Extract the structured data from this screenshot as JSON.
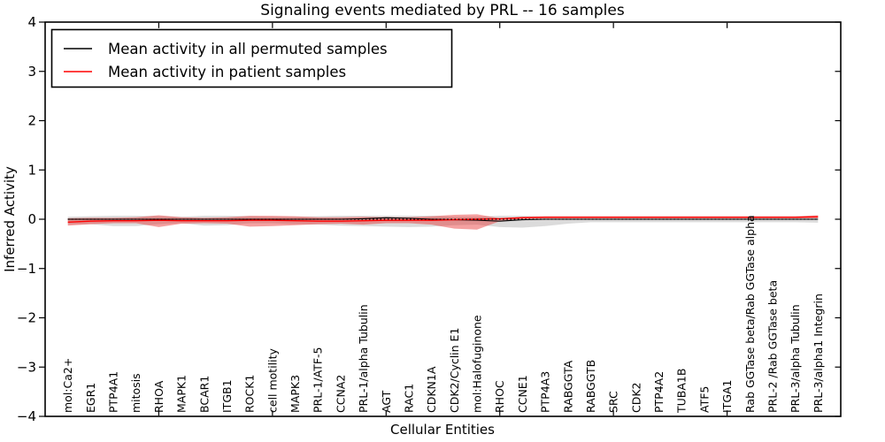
{
  "figure": {
    "title": "Signaling events mediated by PRL -- 16 samples",
    "xlabel": "Cellular Entities",
    "ylabel": "Inferred Activity",
    "legend": {
      "entries": [
        {
          "label": "Mean activity in all permuted samples",
          "color": "#000000"
        },
        {
          "label": "Mean activity in patient samples",
          "color": "#ff0000"
        }
      ],
      "position": "upper left"
    }
  },
  "chart_data": {
    "type": "line",
    "title": "Signaling events mediated by PRL -- 16 samples",
    "xlabel": "Cellular Entities",
    "ylabel": "Inferred Activity",
    "ylim": [
      -4,
      4
    ],
    "ytick_labels": [
      "4",
      "3",
      "2",
      "1",
      "0",
      "−1",
      "−2",
      "−3",
      "−4"
    ],
    "grid": false,
    "legend_position": "upper left",
    "categories": [
      "mol:Ca2+",
      "EGR1",
      "PTP4A1",
      "mitosis",
      "RHOA",
      "MAPK1",
      "BCAR1",
      "ITGB1",
      "ROCK1",
      "cell motility",
      "MAPK3",
      "PRL-1/ATF-5",
      "CCNA2",
      "PRL-1/alpha Tubulin",
      "AGT",
      "RAC1",
      "CDKN1A",
      "CDK2/Cyclin E1",
      "mol:Halofuginone",
      "RHOC",
      "CCNE1",
      "PTP4A3",
      "RABGGTA",
      "RABGGTB",
      "SRC",
      "CDK2",
      "PTP4A2",
      "TUBA1B",
      "ATF5",
      "ITGA1",
      "Rab GGTase beta/Rab GGTase alpha",
      "PRL-2 /Rab GGTase beta",
      "PRL-3/alpha Tubulin",
      "PRL-3/alpha1 Integrin"
    ],
    "series": [
      {
        "name": "Mean activity in all permuted samples",
        "color": "#000000",
        "style": "solid",
        "values": [
          0,
          0,
          0,
          0,
          0,
          0,
          0,
          0,
          0,
          0,
          0,
          0,
          0,
          0.01,
          0.03,
          0.02,
          0,
          -0.01,
          -0.02,
          -0.04,
          -0.01,
          0,
          0,
          0,
          0,
          0,
          0,
          0,
          0,
          0,
          0,
          0,
          0,
          0
        ]
      },
      {
        "name": "Mean activity in patient samples",
        "color": "#ff0000",
        "style": "solid",
        "values": [
          -0.06,
          -0.04,
          -0.03,
          -0.03,
          -0.02,
          -0.03,
          -0.03,
          -0.03,
          -0.02,
          -0.02,
          -0.03,
          -0.04,
          -0.04,
          -0.03,
          -0.02,
          -0.02,
          -0.02,
          -0.01,
          0,
          0.01,
          0.03,
          0.04,
          0.04,
          0.04,
          0.04,
          0.04,
          0.04,
          0.04,
          0.04,
          0.04,
          0.04,
          0.04,
          0.04,
          0.05
        ]
      }
    ],
    "baseline": {
      "name": "zero-reference-line",
      "value": 0,
      "color": "#000000",
      "style": "dotted"
    },
    "bands": [
      {
        "name": "permuted-samples-range",
        "color": "#888888",
        "opacity": 0.3,
        "upper": [
          0.05,
          0.06,
          0.07,
          0.07,
          0.06,
          0.05,
          0.07,
          0.07,
          0.06,
          0.05,
          0.05,
          0.06,
          0.07,
          0.07,
          0.07,
          0.07,
          0.07,
          0.05,
          0.05,
          0.07,
          0.07,
          0.05,
          0.04,
          0.04,
          0.04,
          0.04,
          0.04,
          0.04,
          0.04,
          0.04,
          0.04,
          0.04,
          0.04,
          0.05
        ],
        "lower": [
          -0.1,
          -0.1,
          -0.14,
          -0.14,
          -0.1,
          -0.08,
          -0.13,
          -0.12,
          -0.08,
          -0.08,
          -0.1,
          -0.11,
          -0.13,
          -0.14,
          -0.15,
          -0.16,
          -0.15,
          -0.12,
          -0.11,
          -0.16,
          -0.17,
          -0.14,
          -0.09,
          -0.06,
          -0.06,
          -0.06,
          -0.06,
          -0.06,
          -0.06,
          -0.06,
          -0.06,
          -0.06,
          -0.06,
          -0.07
        ]
      },
      {
        "name": "patient-samples-range",
        "color": "#e62e2e",
        "opacity": 0.45,
        "upper": [
          0.02,
          0.03,
          0.03,
          0.04,
          0.08,
          0.04,
          0.03,
          0.04,
          0.07,
          0.07,
          0.06,
          0.04,
          0.04,
          0.05,
          0.04,
          0.04,
          0.06,
          0.09,
          0.1,
          0.02,
          0.05,
          0.06,
          0.06,
          0.06,
          0.06,
          0.06,
          0.06,
          0.06,
          0.06,
          0.06,
          0.06,
          0.06,
          0.06,
          0.08
        ],
        "lower": [
          -0.13,
          -0.1,
          -0.08,
          -0.08,
          -0.16,
          -0.09,
          -0.08,
          -0.09,
          -0.15,
          -0.14,
          -0.12,
          -0.1,
          -0.09,
          -0.11,
          -0.08,
          -0.08,
          -0.11,
          -0.19,
          -0.21,
          -0.04,
          0.01,
          0.02,
          0.02,
          0.02,
          0.02,
          0.02,
          0.02,
          0.02,
          0.02,
          0.02,
          0.02,
          0.02,
          0.02,
          0.02
        ]
      }
    ]
  }
}
